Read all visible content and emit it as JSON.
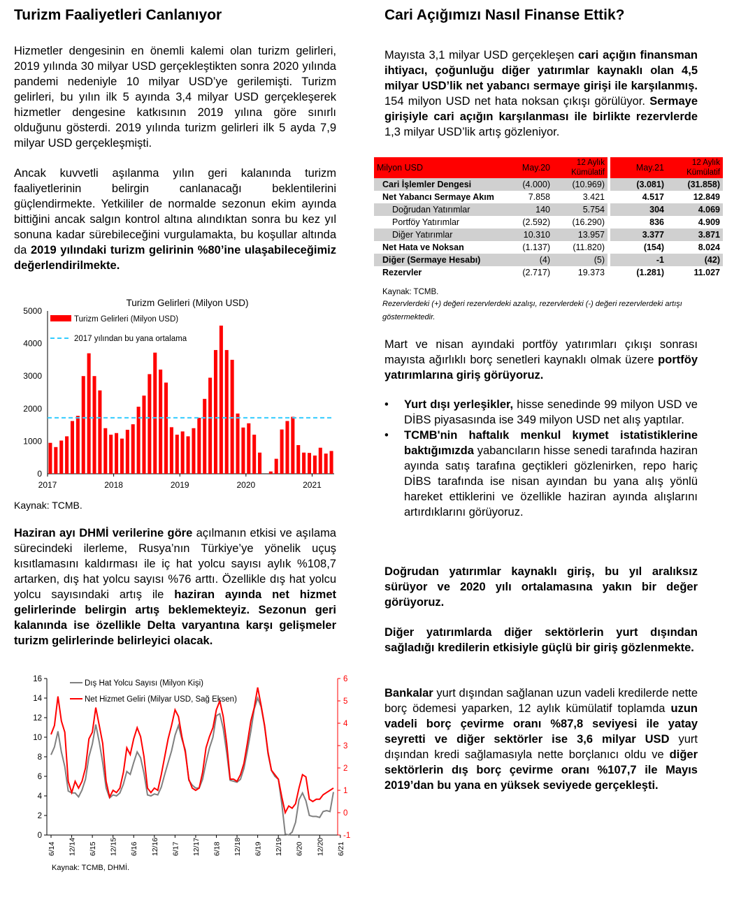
{
  "left": {
    "title": "Turizm Faaliyetleri Canlanıyor",
    "p1": "Hizmetler dengesinin en önemli kalemi olan turizm gelirleri, 2019 yılında 30 milyar USD gerçekleştikten sonra 2020 yılında pandemi nedeniyle 10 milyar USD’ye gerilemişti. Turizm gelirleri, bu yılın ilk 5 ayında 3,4 milyar USD gerçekleşerek hizmetler dengesine katkısının 2019 yılına göre sınırlı olduğunu gösterdi. 2019 yılında turizm gelirleri ilk 5 ayda 7,9 milyar USD gerçekleşmişti.",
    "p2_a": "Ancak kuvvetli aşılanma yılın geri kalanında turizm faaliyetlerinin belirgin canlanacağı beklentilerini güçlendirmekte. Yetkililer de normalde sezonun ekim ayında bittiğini ancak salgın kontrol altına alındıktan sonra bu kez yıl sonuna kadar sürebileceğini vurgulamakta, bu koşullar altında da ",
    "p2_b": "2019 yılındaki turizm gelirinin %80’ine ulaşabileceğimiz değerlendirilmekte.",
    "source1": "Kaynak: TCMB.",
    "p3_a": "Haziran ayı DHMİ verilerine göre",
    "p3_b": " açılmanın etkisi ve aşılama sürecindeki ilerleme, Rusya’nın Türkiye’ye yönelik uçuş kısıtlamasını kaldırması ile iç hat yolcu sayısı aylık %108,7 artarken, dış hat yolcu sayısı %76 arttı. Özellikle dış hat yolcu yolcu sayısındaki artış ile ",
    "p3_c": "haziran ayında net hizmet gelirlerinde belirgin artış beklemekteyiz. Sezonun geri kalanında ise özellikle Delta varyantına karşı gelişmeler turizm gelirlerinde belirleyici olacak.",
    "source2": "Kaynak: TCMB, DHMİ."
  },
  "right": {
    "title": "Cari Açığımızı Nasıl Finanse Ettik?",
    "p1_a": "Mayısta 3,1 milyar USD gerçekleşen ",
    "p1_b": "cari açığın finansman ihtiyacı, çoğunluğu diğer yatırımlar kaynaklı olan 4,5 milyar USD’lik net yabancı sermaye girişi ile karşılanmış.",
    "p1_c": " 154 milyon USD net hata noksan çıkışı görülüyor. ",
    "p1_d": "Sermaye girişiyle cari açığın karşılanması ile birlikte rezervlerde",
    "p1_e": " 1,3 milyar USD’lik artış gözleniyor.",
    "table": {
      "headers": [
        "Milyon USD",
        "May.20",
        "12 Aylık Kümülatif",
        "May.21",
        "12 Aylık Kümülatif"
      ],
      "rows": [
        {
          "label": "Cari İşlemler Dengesi",
          "v": [
            "(4.000)",
            "(10.969)",
            "(3.081)",
            "(31.858)"
          ],
          "shade": true,
          "indent": 1
        },
        {
          "label": "Net Yabancı Sermaye Akım",
          "v": [
            "7.858",
            "3.421",
            "4.517",
            "12.849"
          ],
          "shade": false,
          "indent": 1
        },
        {
          "label": "Doğrudan Yatırımlar",
          "v": [
            "140",
            "5.754",
            "304",
            "4.069"
          ],
          "shade": true,
          "indent": 2
        },
        {
          "label": "Portföy Yatırımlar",
          "v": [
            "(2.592)",
            "(16.290)",
            "836",
            "4.909"
          ],
          "shade": false,
          "indent": 2
        },
        {
          "label": "Diğer Yatırımlar",
          "v": [
            "10.310",
            "13.957",
            "3.377",
            "3.871"
          ],
          "shade": true,
          "indent": 2
        },
        {
          "label": "Net Hata ve Noksan",
          "v": [
            "(1.137)",
            "(11.820)",
            "(154)",
            "8.024"
          ],
          "shade": false,
          "indent": 1
        },
        {
          "label": "Diğer (Sermaye Hesabı)",
          "v": [
            "(4)",
            "(5)",
            "-1",
            "(42)"
          ],
          "shade": true,
          "indent": 1
        },
        {
          "label": "Rezervler",
          "v": [
            "(2.717)",
            "19.373",
            "(1.281)",
            "11.027"
          ],
          "shade": false,
          "indent": 1
        }
      ]
    },
    "source": "Kaynak: TCMB.",
    "note": "Rezervlerdeki (+) değeri rezervlerdeki azalışı, rezervlerdeki (-) değeri rezervlerdeki artışı göstermektedir.",
    "p2_a": "Mart ve nisan ayındaki portföy yatırımları çıkışı sonrası mayısta ağırlıklı borç senetleri kaynaklı olmak üzere ",
    "p2_b": "portföy yatırımlarına giriş görüyoruz.",
    "b1_a": "Yurt dışı yerleşikler,",
    "b1_b": " hisse senedinde 99 milyon USD ve DİBS piyasasında ise 349 milyon USD net alış yaptılar.",
    "b2_a": "TCMB'nin haftalık menkul kıymet istatistiklerine baktığımızda",
    "b2_b": " yabancıların hisse senedi tarafında haziran ayında  satış tarafına geçtikleri gözlenirken, repo hariç DİBS tarafında ise nisan ayından bu yana alış yönlü hareket ettiklerini ve özellikle haziran ayında alışlarını artırdıklarını görüyoruz.",
    "p3": "Doğrudan yatırımlar kaynaklı giriş, bu yıl aralıksız sürüyor ve 2020 yılı ortalamasına yakın bir değer görüyoruz.",
    "p4": "Diğer yatırımlarda diğer sektörlerin yurt dışından sağladığı kredilerin etkisiyle güçlü bir giriş gözlenmekte.",
    "p5_a": "Bankalar",
    "p5_b": " yurt dışından sağlanan uzun vadeli kredilerde nette borç ödemesi yaparken, 12 aylık kümülatif toplamda ",
    "p5_c": "uzun vadeli borç çevirme oranı %87,8 seviyesi ile yatay seyretti ve diğer sektörler ise 3,6 milyar USD",
    "p5_d": " yurt dışından kredi sağlamasıyla nette borçlanıcı oldu ve ",
    "p5_e": "diğer sektörlerin dış borç çevirme oranı %107,7 ile Mayıs 2019’dan bu yana en yüksek seviyede gerçekleşti."
  },
  "chart_data": [
    {
      "type": "bar",
      "title": "Turizm Gelirleri (Milyon USD)",
      "legend": [
        "Turizm Gelirleri (Milyon USD)",
        "2017 yılından bu yana ortalama"
      ],
      "ylim": [
        0,
        5000
      ],
      "yticks": [
        0,
        1000,
        2000,
        3000,
        4000,
        5000
      ],
      "xticks": [
        "2017",
        "2018",
        "2019",
        "2020",
        "2021"
      ],
      "colors": {
        "bar": "#ff0000",
        "avg": "#33ccff"
      },
      "average": 1720,
      "values": [
        950,
        820,
        1020,
        1150,
        1620,
        1780,
        3000,
        3700,
        3000,
        2560,
        1400,
        1200,
        1250,
        1080,
        1350,
        1520,
        2060,
        2400,
        3060,
        3720,
        3200,
        2800,
        1430,
        1200,
        1300,
        1150,
        1400,
        1720,
        2300,
        2950,
        3800,
        4550,
        3800,
        3500,
        1850,
        1420,
        1550,
        1200,
        650,
        0,
        70,
        460,
        1360,
        1620,
        1750,
        880,
        650,
        640,
        560,
        800,
        620,
        700
      ]
    },
    {
      "type": "line",
      "legend": [
        "Dış Hat Yolcu Sayısı (Milyon Kişi)",
        "Net Hizmet Geliri (Milyar USD, Sağ Eksen)"
      ],
      "ylim": [
        0,
        16
      ],
      "y2lim": [
        -1,
        6
      ],
      "yticks": [
        0,
        2,
        4,
        6,
        8,
        10,
        12,
        14,
        16
      ],
      "y2ticks": [
        -1,
        0,
        1,
        2,
        3,
        4,
        5,
        6
      ],
      "xticks": [
        "6/14",
        "12/14",
        "6/15",
        "12/15",
        "6/16",
        "12/16",
        "6/17",
        "12/17",
        "6/18",
        "12/18",
        "6/19",
        "12/19",
        "6/20",
        "12/20",
        "6/21"
      ],
      "colors": {
        "passengers": "#808080",
        "services": "#ff0000"
      },
      "series": [
        {
          "name": "Dış Hat Yolcu Sayısı (Milyon Kişi)",
          "axis": "left",
          "values": [
            8.2,
            9.0,
            10.6,
            8.5,
            7.0,
            4.5,
            4.3,
            4.3,
            3.9,
            4.6,
            5.7,
            8.0,
            9.3,
            11.3,
            9.5,
            7.4,
            4.8,
            3.8,
            4.1,
            4.0,
            4.3,
            5.2,
            6.5,
            6.2,
            7.4,
            8.5,
            7.9,
            6.3,
            4.1,
            4.0,
            4.2,
            4.1,
            4.9,
            6.2,
            7.4,
            8.6,
            10.2,
            11.2,
            9.8,
            8.7,
            5.6,
            5.1,
            4.8,
            4.8,
            5.7,
            7.4,
            8.9,
            10.0,
            12.2,
            12.4,
            10.9,
            8.4,
            5.6,
            5.5,
            5.4,
            5.7,
            6.8,
            8.6,
            10.6,
            12.9,
            14.0,
            13.1,
            11.1,
            8.3,
            6.6,
            6.0,
            5.7,
            3.2,
            0.1,
            0.0,
            0.3,
            1.3,
            3.6,
            4.3,
            3.5,
            2.0,
            1.9,
            1.9,
            1.8,
            2.4,
            2.5,
            2.4,
            4.4
          ]
        },
        {
          "name": "Net Hizmet Geliri (Milyar USD, Sağ Eksen)",
          "axis": "right",
          "values": [
            3.5,
            3.9,
            5.2,
            4.1,
            3.6,
            1.4,
            0.9,
            1.4,
            1.1,
            1.4,
            2.0,
            3.3,
            3.6,
            4.7,
            3.9,
            3.1,
            1.4,
            0.7,
            1.0,
            0.9,
            1.1,
            1.8,
            2.9,
            2.6,
            3.3,
            3.8,
            3.4,
            2.5,
            1.1,
            0.9,
            1.1,
            1.0,
            1.7,
            2.5,
            3.3,
            3.9,
            4.6,
            4.3,
            3.4,
            2.7,
            1.5,
            1.1,
            1.0,
            1.1,
            1.8,
            2.9,
            3.4,
            3.8,
            4.6,
            5.0,
            4.3,
            3.1,
            1.5,
            1.5,
            1.4,
            1.7,
            2.2,
            3.1,
            4.1,
            4.7,
            5.6,
            4.8,
            3.9,
            2.7,
            1.9,
            1.7,
            1.5,
            0.7,
            0.0,
            0.3,
            0.2,
            0.4,
            1.1,
            1.7,
            1.6,
            0.6,
            0.5,
            0.6,
            0.6,
            0.8,
            0.9,
            1.0,
            1.1
          ]
        }
      ]
    }
  ]
}
